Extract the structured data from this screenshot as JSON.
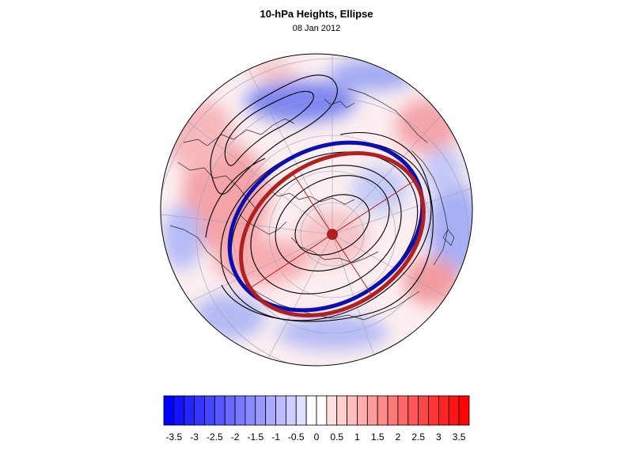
{
  "title": "10-hPa Heights, Ellipse",
  "subtitle": "08 Jan 2012",
  "colorbar": {
    "levels": [
      "-3.5",
      "-3",
      "-2.5",
      "-2",
      "-1.5",
      "-1",
      "-0.5",
      "0",
      "0.5",
      "1",
      "1.5",
      "2",
      "2.5",
      "3",
      "3.5"
    ],
    "min": -3.75,
    "max": 3.75,
    "step": 0.25,
    "negative_color": "#0000ff",
    "neutral_color": "#ffffff",
    "positive_color": "#ff0000"
  },
  "colors": {
    "ellipse_blue": "#0a10b0",
    "ellipse_red": "#b02020",
    "center_dot": "#b02020",
    "contours": "#000000",
    "graticule": "#9aa0b8"
  },
  "map": {
    "projection": "polar stereographic (north)",
    "field": "10-hPa height anomaly",
    "contour_lines": "geopotential height",
    "fitted_ellipses": 2
  }
}
